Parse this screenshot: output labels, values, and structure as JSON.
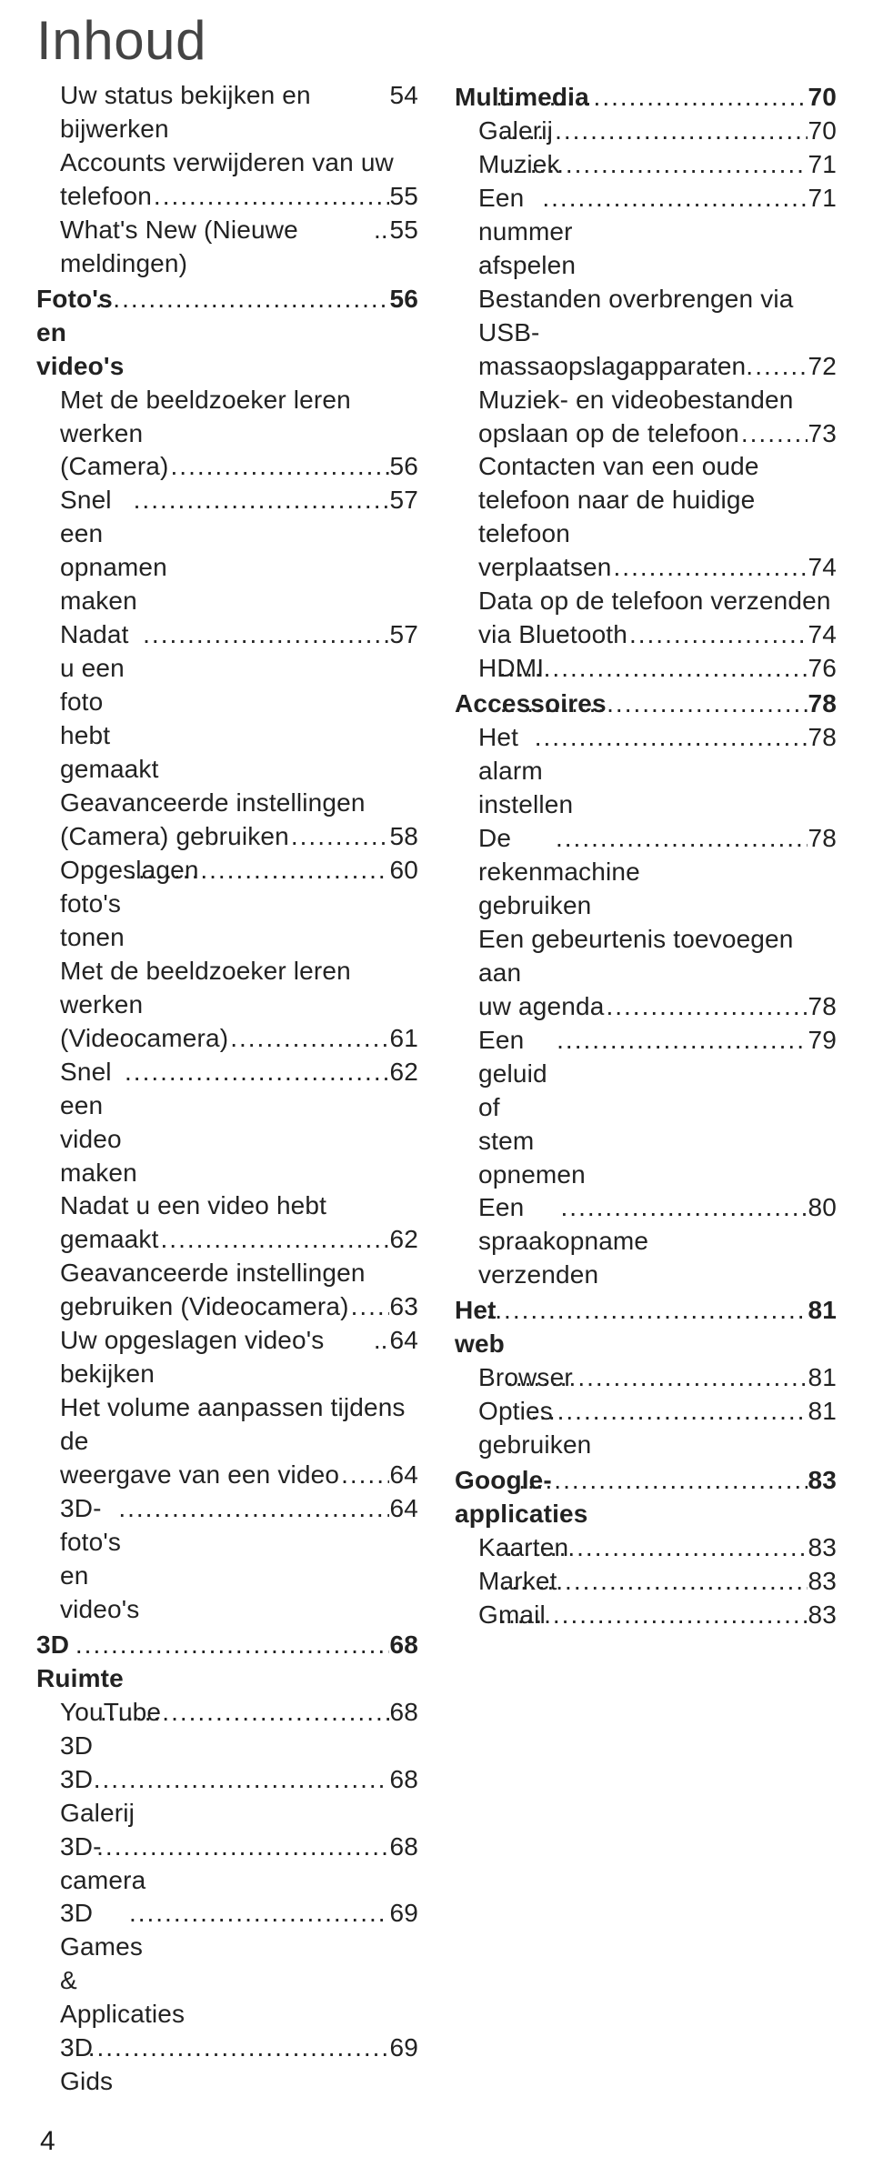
{
  "title": "Inhoud",
  "page_number": "4",
  "leader_char": ".",
  "colors": {
    "text": "#1a1a1a",
    "title": "#444444",
    "background": "#ffffff"
  },
  "typography": {
    "title_fontsize": 60,
    "body_fontsize": 28,
    "title_weight": 200,
    "body_weight": 300,
    "section_weight": 600,
    "line_height": 1.32
  },
  "left_column": [
    {
      "type": "line",
      "indent": true,
      "leader": "none",
      "label": "Uw status bekijken en bijwerken",
      "page": "54"
    },
    {
      "type": "wrap",
      "indent": true,
      "lines": [
        "Accounts verwijderen van uw"
      ],
      "tail": "telefoon",
      "page": "55"
    },
    {
      "type": "line",
      "indent": true,
      "leader": "short",
      "label": "What's New (Nieuwe meldingen)",
      "page": "55"
    },
    {
      "type": "line",
      "section": true,
      "leader": "dots",
      "label": "Foto's en video's",
      "page": "56"
    },
    {
      "type": "wrap",
      "indent": true,
      "lines": [
        "Met de beeldzoeker leren werken"
      ],
      "tail": "(Camera)",
      "page": "56"
    },
    {
      "type": "line",
      "indent": true,
      "leader": "dots",
      "label": "Snel een opnamen maken",
      "page": "57"
    },
    {
      "type": "line",
      "indent": true,
      "leader": "dots",
      "label": "Nadat u een foto hebt gemaakt",
      "page": "57"
    },
    {
      "type": "wrap",
      "indent": true,
      "lines": [
        "Geavanceerde instellingen"
      ],
      "tail": "(Camera) gebruiken",
      "page": "58"
    },
    {
      "type": "line",
      "indent": true,
      "leader": "dots",
      "label": "Opgeslagen foto's tonen",
      "page": "60"
    },
    {
      "type": "wrap",
      "indent": true,
      "lines": [
        "Met de beeldzoeker leren werken"
      ],
      "tail": "(Videocamera)",
      "page": "61"
    },
    {
      "type": "line",
      "indent": true,
      "leader": "dots",
      "label": "Snel een video maken",
      "page": "62"
    },
    {
      "type": "wrap",
      "indent": true,
      "lines": [
        "Nadat u een video hebt"
      ],
      "tail": "gemaakt",
      "page": "62"
    },
    {
      "type": "wrap",
      "indent": true,
      "lines": [
        "Geavanceerde instellingen"
      ],
      "tail": "gebruiken (Videocamera)",
      "page": "63"
    },
    {
      "type": "line",
      "indent": true,
      "leader": "short",
      "label": "Uw opgeslagen video's bekijken",
      "page": "64"
    },
    {
      "type": "wrap",
      "indent": true,
      "lines": [
        "Het volume aanpassen tijdens de"
      ],
      "tail": "weergave van een video",
      "page": "64"
    },
    {
      "type": "line",
      "indent": true,
      "leader": "dots",
      "label": "3D-foto's en video's",
      "page": "64"
    },
    {
      "type": "line",
      "section": true,
      "leader": "dots",
      "label": "3D Ruimte",
      "page": "68"
    },
    {
      "type": "line",
      "indent": true,
      "leader": "dots",
      "label": "YouTube 3D",
      "page": "68"
    },
    {
      "type": "line",
      "indent": true,
      "leader": "dots",
      "label": "3D Galerij",
      "page": "68"
    },
    {
      "type": "line",
      "indent": true,
      "leader": "dots",
      "label": "3D-camera",
      "page": "68"
    },
    {
      "type": "line",
      "indent": true,
      "leader": "dots",
      "label": "3D Games & Applicaties",
      "page": "69"
    },
    {
      "type": "line",
      "indent": true,
      "leader": "dots",
      "label": "3D Gids",
      "page": "69"
    }
  ],
  "right_column": [
    {
      "type": "line",
      "section": true,
      "leader": "dots",
      "label": "Multimedia",
      "page": "70"
    },
    {
      "type": "line",
      "indent": true,
      "leader": "dots",
      "label": "Galerij",
      "page": "70"
    },
    {
      "type": "line",
      "indent": true,
      "leader": "dots",
      "label": "Muziek",
      "page": "71"
    },
    {
      "type": "line",
      "indent": true,
      "leader": "dots",
      "label": "Een nummer afspelen",
      "page": "71"
    },
    {
      "type": "wrap",
      "indent": true,
      "lines": [
        "Bestanden overbrengen via USB-"
      ],
      "tail": "massaopslagapparaten.",
      "page": "72"
    },
    {
      "type": "wrap",
      "indent": true,
      "lines": [
        "Muziek- en videobestanden"
      ],
      "tail": "opslaan op de telefoon",
      "page": "73"
    },
    {
      "type": "wrap",
      "indent": true,
      "lines": [
        "Contacten van een oude",
        "telefoon naar de huidige telefoon"
      ],
      "tail": "verplaatsen",
      "page": "74"
    },
    {
      "type": "wrap",
      "indent": true,
      "lines": [
        "Data op de telefoon verzenden"
      ],
      "tail": "via Bluetooth",
      "page": "74"
    },
    {
      "type": "line",
      "indent": true,
      "leader": "dots",
      "label": "HDMI",
      "page": "76"
    },
    {
      "type": "line",
      "section": true,
      "leader": "dots",
      "label": "Accessoires",
      "page": "78"
    },
    {
      "type": "line",
      "indent": true,
      "leader": "dots",
      "label": "Het alarm instellen",
      "page": "78"
    },
    {
      "type": "line",
      "indent": true,
      "leader": "dots",
      "label": "De rekenmachine gebruiken",
      "page": "78"
    },
    {
      "type": "wrap",
      "indent": true,
      "lines": [
        "Een gebeurtenis toevoegen aan"
      ],
      "tail": "uw agenda",
      "page": "78"
    },
    {
      "type": "line",
      "indent": true,
      "leader": "dots",
      "label": "Een geluid of stem opnemen",
      "page": "79"
    },
    {
      "type": "line",
      "indent": true,
      "leader": "dots",
      "label": "Een spraakopname verzenden",
      "page": "80"
    },
    {
      "type": "line",
      "section": true,
      "leader": "dots",
      "label": "Het web",
      "page": "81"
    },
    {
      "type": "line",
      "indent": true,
      "leader": "dots",
      "label": "Browser",
      "page": "81"
    },
    {
      "type": "line",
      "indent": true,
      "leader": "dots",
      "label": "Opties gebruiken",
      "page": "81"
    },
    {
      "type": "line",
      "section": true,
      "leader": "dots",
      "label": "Google-applicaties",
      "page": "83"
    },
    {
      "type": "line",
      "indent": true,
      "leader": "dots",
      "label": "Kaarten",
      "page": "83"
    },
    {
      "type": "line",
      "indent": true,
      "leader": "dots",
      "label": "Market",
      "page": "83"
    },
    {
      "type": "line",
      "indent": true,
      "leader": "dots",
      "label": "Gmail",
      "page": "83"
    }
  ]
}
